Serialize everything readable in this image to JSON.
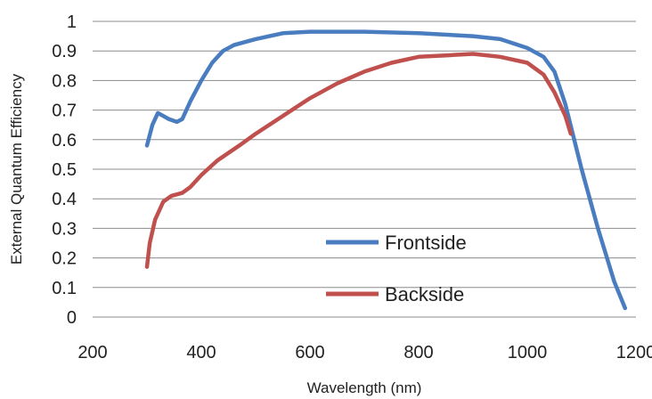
{
  "chart_data": {
    "type": "line",
    "xlabel": "Wavelength (nm)",
    "ylabel": "External Quantum Efficiency",
    "xlim": [
      200,
      1200
    ],
    "ylim": [
      0,
      1
    ],
    "x_ticks": [
      "200",
      "400",
      "600",
      "800",
      "1000",
      "1200"
    ],
    "y_ticks": [
      "0",
      "0.1",
      "0.2",
      "0.3",
      "0.4",
      "0.5",
      "0.6",
      "0.7",
      "0.8",
      "0.9",
      "1"
    ],
    "grid": "horizontal",
    "legend_position": "bottom-center",
    "series": [
      {
        "name": "Frontside",
        "color": "#4a7dbf",
        "points": [
          [
            300,
            0.58
          ],
          [
            310,
            0.65
          ],
          [
            320,
            0.69
          ],
          [
            330,
            0.68
          ],
          [
            340,
            0.67
          ],
          [
            355,
            0.66
          ],
          [
            365,
            0.67
          ],
          [
            380,
            0.73
          ],
          [
            400,
            0.8
          ],
          [
            420,
            0.86
          ],
          [
            440,
            0.9
          ],
          [
            460,
            0.92
          ],
          [
            500,
            0.94
          ],
          [
            550,
            0.96
          ],
          [
            600,
            0.965
          ],
          [
            700,
            0.965
          ],
          [
            800,
            0.96
          ],
          [
            900,
            0.95
          ],
          [
            950,
            0.94
          ],
          [
            1000,
            0.91
          ],
          [
            1030,
            0.88
          ],
          [
            1050,
            0.83
          ],
          [
            1070,
            0.72
          ],
          [
            1100,
            0.5
          ],
          [
            1130,
            0.3
          ],
          [
            1160,
            0.12
          ],
          [
            1180,
            0.03
          ]
        ]
      },
      {
        "name": "Backside",
        "color": "#c0504d",
        "points": [
          [
            300,
            0.17
          ],
          [
            305,
            0.25
          ],
          [
            315,
            0.33
          ],
          [
            330,
            0.39
          ],
          [
            345,
            0.41
          ],
          [
            365,
            0.42
          ],
          [
            380,
            0.44
          ],
          [
            400,
            0.48
          ],
          [
            430,
            0.53
          ],
          [
            470,
            0.58
          ],
          [
            500,
            0.62
          ],
          [
            550,
            0.68
          ],
          [
            600,
            0.74
          ],
          [
            650,
            0.79
          ],
          [
            700,
            0.83
          ],
          [
            750,
            0.86
          ],
          [
            800,
            0.88
          ],
          [
            850,
            0.885
          ],
          [
            900,
            0.89
          ],
          [
            950,
            0.88
          ],
          [
            1000,
            0.86
          ],
          [
            1030,
            0.82
          ],
          [
            1050,
            0.76
          ],
          [
            1070,
            0.68
          ],
          [
            1080,
            0.62
          ]
        ]
      }
    ]
  }
}
